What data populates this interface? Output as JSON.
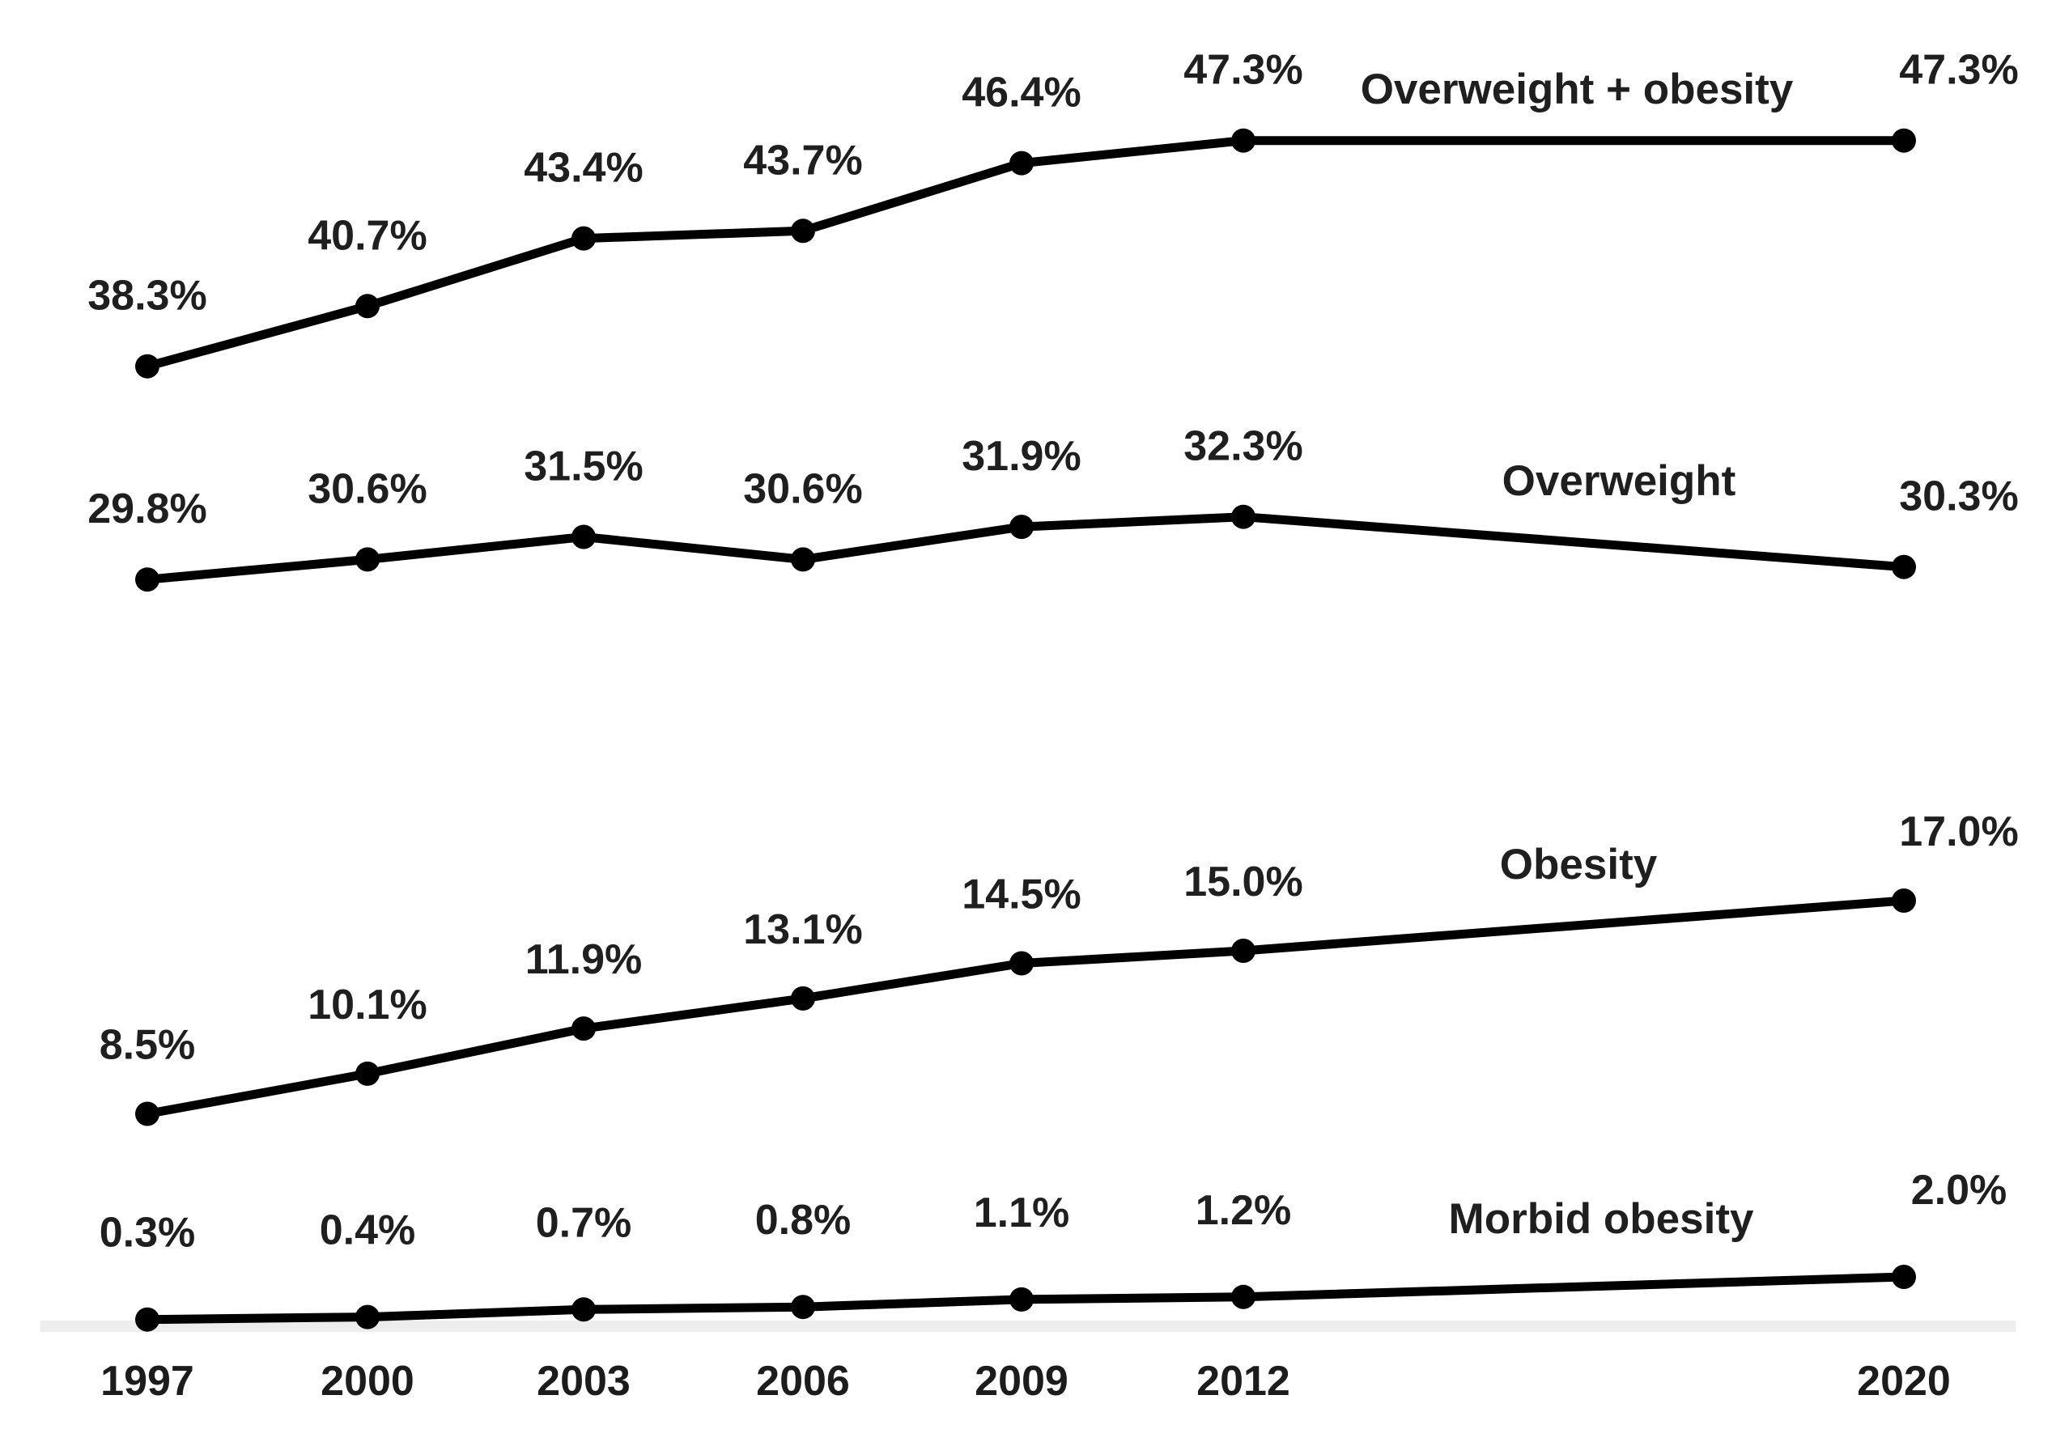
{
  "chart_data": {
    "type": "line",
    "title": "",
    "xlabel": "",
    "ylabel": "",
    "x_years": [
      1997,
      2000,
      2003,
      2006,
      2009,
      2012,
      2020
    ],
    "x_tick_labels": [
      "1997",
      "2000",
      "2003",
      "2006",
      "2009",
      "2012",
      "2020"
    ],
    "ylim": [
      0,
      50
    ],
    "grid": false,
    "legend_position": "inline-right-of-each-line",
    "series": [
      {
        "name": "Overweight + obesity",
        "values": [
          38.3,
          40.7,
          43.4,
          43.7,
          46.4,
          47.3,
          47.3
        ],
        "point_labels": [
          "38.3%",
          "40.7%",
          "43.4%",
          "43.7%",
          "46.4%",
          "47.3%",
          "47.3%"
        ]
      },
      {
        "name": "Overweight",
        "values": [
          29.8,
          30.6,
          31.5,
          30.6,
          31.9,
          32.3,
          30.3
        ],
        "point_labels": [
          "29.8%",
          "30.6%",
          "31.5%",
          "30.6%",
          "31.9%",
          "32.3%",
          "30.3%"
        ]
      },
      {
        "name": "Obesity",
        "values": [
          8.5,
          10.1,
          11.9,
          13.1,
          14.5,
          15.0,
          17.0
        ],
        "point_labels": [
          "8.5%",
          "10.1%",
          "11.9%",
          "13.1%",
          "14.5%",
          "15.0%",
          "17.0%"
        ]
      },
      {
        "name": "Morbid obesity",
        "values": [
          0.3,
          0.4,
          0.7,
          0.8,
          1.1,
          1.2,
          2.0
        ],
        "point_labels": [
          "0.3%",
          "0.4%",
          "0.7%",
          "0.8%",
          "1.1%",
          "1.2%",
          "2.0%"
        ]
      }
    ],
    "colors": {
      "line": "#000000",
      "marker": "#000000",
      "label_text": "#1f1f1f",
      "axis_band": "#ededed",
      "background": "#ffffff"
    }
  }
}
